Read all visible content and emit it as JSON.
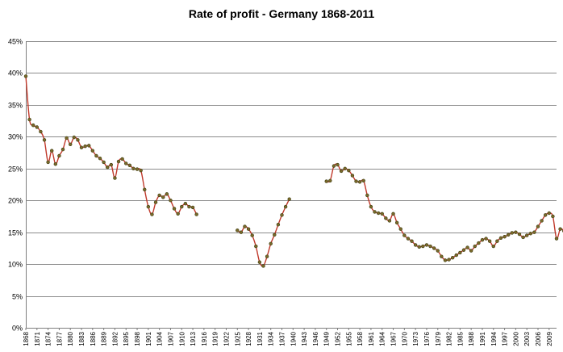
{
  "chart_data": {
    "type": "line",
    "title": "Rate of profit - Germany 1868-2011",
    "xlabel": "",
    "ylabel": "",
    "ylim": [
      0,
      45
    ],
    "yticks": [
      0,
      5,
      10,
      15,
      20,
      25,
      30,
      35,
      40,
      45
    ],
    "ytick_labels": [
      "0%",
      "5%",
      "10%",
      "15%",
      "20%",
      "25%",
      "30%",
      "35%",
      "40%",
      "45%"
    ],
    "xlim": [
      1868,
      2011
    ],
    "xticks": [
      1868,
      1871,
      1874,
      1877,
      1880,
      1883,
      1886,
      1889,
      1892,
      1895,
      1898,
      1901,
      1904,
      1907,
      1910,
      1913,
      1916,
      1919,
      1922,
      1925,
      1928,
      1931,
      1934,
      1937,
      1940,
      1943,
      1946,
      1949,
      1952,
      1955,
      1958,
      1961,
      1964,
      1967,
      1970,
      1973,
      1976,
      1979,
      1982,
      1985,
      1988,
      1991,
      1994,
      1997,
      2000,
      2003,
      2006,
      2009
    ],
    "grid": true,
    "legend": "none",
    "colors": {
      "line": "#c0392b",
      "marker_fill": "#7a6a2a",
      "marker_edge": "#3a3a10",
      "grid": "#8c8c8c"
    },
    "series": [
      {
        "values": [
          [
            1868,
            39.5
          ],
          [
            1869,
            32.7
          ],
          [
            1870,
            31.8
          ],
          [
            1871,
            31.5
          ],
          [
            1872,
            30.8
          ],
          [
            1873,
            29.5
          ],
          [
            1874,
            26.0
          ],
          [
            1875,
            27.8
          ],
          [
            1876,
            25.7
          ],
          [
            1877,
            27.0
          ],
          [
            1878,
            28.0
          ],
          [
            1879,
            29.8
          ],
          [
            1880,
            28.8
          ],
          [
            1881,
            29.9
          ],
          [
            1882,
            29.5
          ],
          [
            1883,
            28.3
          ],
          [
            1884,
            28.5
          ],
          [
            1885,
            28.6
          ],
          [
            1886,
            27.8
          ],
          [
            1887,
            27.0
          ],
          [
            1888,
            26.6
          ],
          [
            1889,
            26.0
          ],
          [
            1890,
            25.2
          ],
          [
            1891,
            25.6
          ],
          [
            1892,
            23.5
          ],
          [
            1893,
            26.1
          ],
          [
            1894,
            26.5
          ],
          [
            1895,
            25.8
          ],
          [
            1896,
            25.5
          ],
          [
            1897,
            25.0
          ],
          [
            1898,
            24.9
          ],
          [
            1899,
            24.7
          ],
          [
            1900,
            21.7
          ],
          [
            1901,
            19.0
          ],
          [
            1902,
            17.8
          ],
          [
            1903,
            19.7
          ],
          [
            1904,
            20.8
          ],
          [
            1905,
            20.5
          ],
          [
            1906,
            21.0
          ],
          [
            1907,
            20.0
          ],
          [
            1908,
            18.7
          ],
          [
            1909,
            17.9
          ],
          [
            1910,
            19.0
          ],
          [
            1911,
            19.5
          ],
          [
            1912,
            19.0
          ],
          [
            1913,
            18.9
          ],
          [
            1914,
            17.8
          ],
          [
            1925,
            15.3
          ],
          [
            1926,
            15.0
          ],
          [
            1927,
            15.9
          ],
          [
            1928,
            15.5
          ],
          [
            1929,
            14.5
          ],
          [
            1930,
            12.8
          ],
          [
            1931,
            10.3
          ],
          [
            1932,
            9.7
          ],
          [
            1933,
            11.2
          ],
          [
            1934,
            13.2
          ],
          [
            1935,
            14.6
          ],
          [
            1936,
            16.2
          ],
          [
            1937,
            17.7
          ],
          [
            1938,
            19.0
          ],
          [
            1939,
            20.2
          ],
          [
            1949,
            23.0
          ],
          [
            1950,
            23.1
          ],
          [
            1951,
            25.4
          ],
          [
            1952,
            25.6
          ],
          [
            1953,
            24.6
          ],
          [
            1954,
            25.0
          ],
          [
            1955,
            24.7
          ],
          [
            1956,
            23.9
          ],
          [
            1957,
            23.0
          ],
          [
            1958,
            22.9
          ],
          [
            1959,
            23.1
          ],
          [
            1960,
            20.8
          ],
          [
            1961,
            19.0
          ],
          [
            1962,
            18.2
          ],
          [
            1963,
            18.0
          ],
          [
            1964,
            17.9
          ],
          [
            1965,
            17.2
          ],
          [
            1966,
            16.8
          ],
          [
            1967,
            17.9
          ],
          [
            1968,
            16.5
          ],
          [
            1969,
            15.5
          ],
          [
            1970,
            14.5
          ],
          [
            1971,
            14.0
          ],
          [
            1972,
            13.6
          ],
          [
            1973,
            13.0
          ],
          [
            1974,
            12.7
          ],
          [
            1975,
            12.8
          ],
          [
            1976,
            13.0
          ],
          [
            1977,
            12.8
          ],
          [
            1978,
            12.5
          ],
          [
            1979,
            12.1
          ],
          [
            1980,
            11.2
          ],
          [
            1981,
            10.6
          ],
          [
            1982,
            10.7
          ],
          [
            1983,
            11.0
          ],
          [
            1984,
            11.4
          ],
          [
            1985,
            11.8
          ],
          [
            1986,
            12.2
          ],
          [
            1987,
            12.6
          ],
          [
            1988,
            12.1
          ],
          [
            1989,
            12.8
          ],
          [
            1990,
            13.3
          ],
          [
            1991,
            13.8
          ],
          [
            1992,
            14.0
          ],
          [
            1993,
            13.6
          ],
          [
            1994,
            12.8
          ],
          [
            1995,
            13.6
          ],
          [
            1996,
            14.1
          ],
          [
            1997,
            14.3
          ],
          [
            1998,
            14.6
          ],
          [
            1999,
            14.9
          ],
          [
            2000,
            15.0
          ],
          [
            2001,
            14.7
          ],
          [
            2002,
            14.2
          ],
          [
            2003,
            14.5
          ],
          [
            2004,
            14.8
          ],
          [
            2005,
            15.0
          ],
          [
            2006,
            15.9
          ],
          [
            2007,
            16.8
          ],
          [
            2008,
            17.7
          ],
          [
            2009,
            18.0
          ],
          [
            2010,
            17.5
          ],
          [
            2011,
            14.0
          ],
          [
            2012,
            15.5
          ],
          [
            2013,
            15.2
          ]
        ]
      }
    ]
  }
}
